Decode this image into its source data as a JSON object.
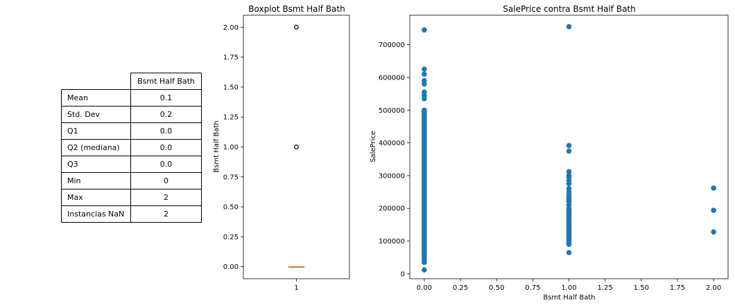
{
  "stats_table": {
    "header": "Bsmt Half Bath",
    "rows": [
      {
        "label": "Mean",
        "value": "0.1"
      },
      {
        "label": "Std. Dev",
        "value": "0.2"
      },
      {
        "label": "Q1",
        "value": "0.0"
      },
      {
        "label": "Q2 (mediana)",
        "value": "0.0"
      },
      {
        "label": "Q3",
        "value": "0.0"
      },
      {
        "label": "Min",
        "value": "0"
      },
      {
        "label": "Max",
        "value": "2"
      },
      {
        "label": "Instancias NaN",
        "value": "2"
      }
    ]
  },
  "colors": {
    "points": "#1f77b4",
    "median": "#ff7f0e",
    "axis": "#000000"
  },
  "chart_data": [
    {
      "type": "box",
      "title": "Boxplot Bsmt Half Bath",
      "xlabel": "",
      "ylabel": "Bsmt Half Bath",
      "categories": [
        "1"
      ],
      "ylim": [
        -0.1,
        2.1
      ],
      "yticks": [
        "0.00",
        "0.25",
        "0.50",
        "0.75",
        "1.00",
        "1.25",
        "1.50",
        "1.75",
        "2.00"
      ],
      "box": {
        "q1": 0,
        "median": 0,
        "q3": 0,
        "whisker_low": 0,
        "whisker_high": 0
      },
      "outliers": [
        1,
        2
      ]
    },
    {
      "type": "scatter",
      "title": "SalePrice contra Bsmt Half Bath",
      "xlabel": "Bsmt Half Bath",
      "ylabel": "SalePrice",
      "xlim": [
        -0.1,
        2.1
      ],
      "ylim": [
        -15000,
        790000
      ],
      "xticks": [
        "0.00",
        "0.25",
        "0.50",
        "0.75",
        "1.00",
        "1.25",
        "1.50",
        "1.75",
        "2.00"
      ],
      "yticks": [
        "0",
        "100000",
        "200000",
        "300000",
        "400000",
        "500000",
        "600000",
        "700000"
      ],
      "points_x0": [
        12000,
        35000,
        40000,
        45000,
        50000,
        55000,
        60000,
        65000,
        70000,
        75000,
        80000,
        85000,
        90000,
        95000,
        100000,
        105000,
        110000,
        115000,
        120000,
        125000,
        130000,
        135000,
        140000,
        145000,
        150000,
        155000,
        160000,
        165000,
        170000,
        175000,
        180000,
        185000,
        190000,
        195000,
        200000,
        205000,
        210000,
        215000,
        220000,
        225000,
        230000,
        235000,
        240000,
        245000,
        250000,
        255000,
        260000,
        265000,
        270000,
        275000,
        280000,
        285000,
        290000,
        295000,
        300000,
        305000,
        310000,
        315000,
        320000,
        325000,
        330000,
        335000,
        340000,
        345000,
        350000,
        355000,
        360000,
        365000,
        370000,
        375000,
        380000,
        385000,
        390000,
        395000,
        400000,
        405000,
        410000,
        415000,
        420000,
        425000,
        430000,
        435000,
        440000,
        445000,
        450000,
        455000,
        460000,
        465000,
        470000,
        475000,
        480000,
        485000,
        490000,
        495000,
        500000,
        535000,
        545000,
        555000,
        580000,
        590000,
        610000,
        625000,
        745000
      ],
      "points_x1": [
        65000,
        90000,
        95000,
        100000,
        105000,
        110000,
        115000,
        120000,
        125000,
        130000,
        135000,
        140000,
        145000,
        150000,
        155000,
        160000,
        165000,
        170000,
        175000,
        180000,
        185000,
        190000,
        195000,
        200000,
        210000,
        220000,
        225000,
        230000,
        235000,
        240000,
        250000,
        260000,
        275000,
        285000,
        295000,
        300000,
        312000,
        375000,
        392000,
        755000
      ],
      "points_x2": [
        128000,
        194000,
        262000
      ]
    }
  ]
}
